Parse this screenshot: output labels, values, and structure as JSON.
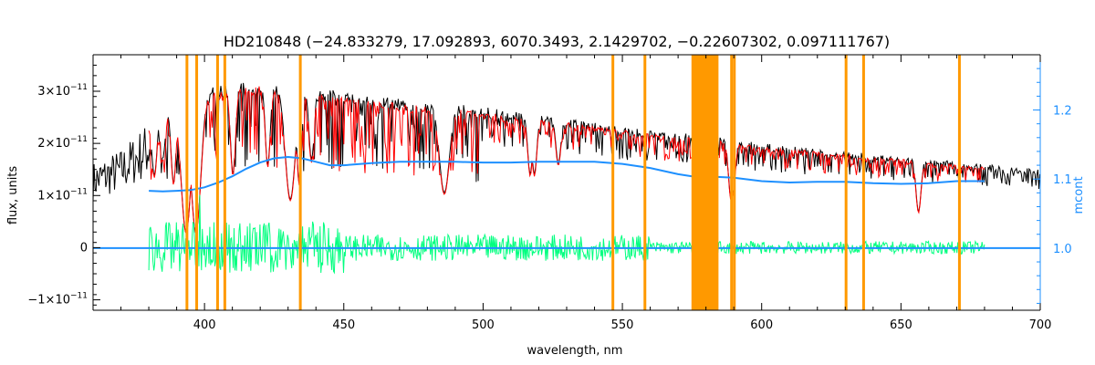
{
  "chart_data": {
    "type": "line",
    "title": "HD210848    (−24.833279, 17.092893, 6070.3493, 2.1429702, −0.22607302, 0.097111767)",
    "xlabel": "wavelength, nm",
    "ylabel": "flux, units",
    "y2label": "mcont",
    "xlim": [
      360,
      700
    ],
    "ylim": [
      -1.2e-11,
      3.7e-11
    ],
    "y2lim": [
      0.91,
      1.28
    ],
    "xticks": [
      {
        "v": 400,
        "label": "400"
      },
      {
        "v": 450,
        "label": "450"
      },
      {
        "v": 500,
        "label": "500"
      },
      {
        "v": 550,
        "label": "550"
      },
      {
        "v": 600,
        "label": "600"
      },
      {
        "v": 650,
        "label": "650"
      },
      {
        "v": 700,
        "label": "700"
      }
    ],
    "yticks": [
      {
        "v": -1e-11,
        "m": "−1",
        "e": "−11"
      },
      {
        "v": 0,
        "m": "0",
        "e": ""
      },
      {
        "v": 1e-11,
        "m": "1",
        "e": "−11"
      },
      {
        "v": 2e-11,
        "m": "2",
        "e": "−11"
      },
      {
        "v": 3e-11,
        "m": "3",
        "e": "−11"
      }
    ],
    "y2ticks": [
      {
        "v": 1.0,
        "label": "1.0"
      },
      {
        "v": 1.1,
        "label": "1.1"
      },
      {
        "v": 1.2,
        "label": "1.2"
      }
    ],
    "colors": {
      "observed": "#000000",
      "model": "#ff0000",
      "excluded_model": "#ffff00",
      "residuals": "#00ff7f",
      "continuum": "#1e90ff",
      "masks": "#ff9900",
      "y2axis": "#1e90ff"
    },
    "masks": [
      {
        "x0": 393.2,
        "x1": 393.8
      },
      {
        "x0": 396.7,
        "x1": 397.3
      },
      {
        "x0": 404.2,
        "x1": 404.8
      },
      {
        "x0": 406.8,
        "x1": 407.4
      },
      {
        "x0": 433.9,
        "x1": 434.5
      },
      {
        "x0": 546.1,
        "x1": 546.7
      },
      {
        "x0": 557.6,
        "x1": 558.2
      },
      {
        "x0": 574.8,
        "x1": 584.5
      },
      {
        "x0": 588.7,
        "x1": 589.3
      },
      {
        "x0": 589.7,
        "x1": 590.3
      },
      {
        "x0": 629.8,
        "x1": 630.4
      },
      {
        "x0": 636.1,
        "x1": 636.7
      },
      {
        "x0": 670.5,
        "x1": 671.1
      }
    ],
    "continuum": {
      "x": [
        380,
        385,
        390,
        395,
        400,
        405,
        410,
        415,
        420,
        425,
        430,
        435,
        440,
        445,
        450,
        460,
        470,
        480,
        490,
        500,
        510,
        520,
        530,
        540,
        550,
        560,
        570,
        575,
        580,
        590,
        600,
        610,
        620,
        630,
        640,
        650,
        660,
        670,
        680
      ],
      "y": [
        1.083,
        1.082,
        1.083,
        1.084,
        1.088,
        1.095,
        1.104,
        1.115,
        1.124,
        1.13,
        1.132,
        1.13,
        1.125,
        1.12,
        1.12,
        1.123,
        1.125,
        1.125,
        1.125,
        1.124,
        1.124,
        1.125,
        1.125,
        1.125,
        1.122,
        1.116,
        1.107,
        1.104,
        1.104,
        1.102,
        1.097,
        1.095,
        1.096,
        1.096,
        1.094,
        1.093,
        1.094,
        1.097,
        1.097
      ]
    },
    "observed_envelope": {
      "x": [
        360,
        370,
        380,
        390,
        400,
        410,
        420,
        430,
        440,
        450,
        460,
        480,
        500,
        520,
        540,
        560,
        580,
        600,
        620,
        640,
        660,
        680,
        700
      ],
      "y": [
        1.65e-11,
        1.9e-11,
        2.45e-11,
        2.8e-11,
        3.05e-11,
        3.15e-11,
        3.2e-11,
        3.1e-11,
        3.05e-11,
        3e-11,
        2.92e-11,
        2.8e-11,
        2.7e-11,
        2.55e-11,
        2.4e-11,
        2.25e-11,
        2.15e-11,
        2e-11,
        1.9e-11,
        1.8e-11,
        1.7e-11,
        1.6e-11,
        1.5e-11
      ]
    },
    "model_range": [
      380,
      680
    ],
    "residual_range": [
      380,
      680
    ],
    "absorption_lines": [
      {
        "x": 382.0,
        "depth": 0.45
      },
      {
        "x": 385.0,
        "depth": 0.35
      },
      {
        "x": 388.9,
        "depth": 0.55
      },
      {
        "x": 393.4,
        "depth": 0.9
      },
      {
        "x": 396.9,
        "depth": 0.9
      },
      {
        "x": 410.2,
        "depth": 0.55
      },
      {
        "x": 422.7,
        "depth": 0.5
      },
      {
        "x": 430.8,
        "depth": 0.7
      },
      {
        "x": 434.0,
        "depth": 0.6
      },
      {
        "x": 438.4,
        "depth": 0.45
      },
      {
        "x": 486.1,
        "depth": 0.62
      },
      {
        "x": 516.9,
        "depth": 0.45
      },
      {
        "x": 518.4,
        "depth": 0.45
      },
      {
        "x": 527.0,
        "depth": 0.35
      },
      {
        "x": 589.0,
        "depth": 0.55
      },
      {
        "x": 589.6,
        "depth": 0.5
      },
      {
        "x": 656.3,
        "depth": 0.6
      }
    ]
  }
}
